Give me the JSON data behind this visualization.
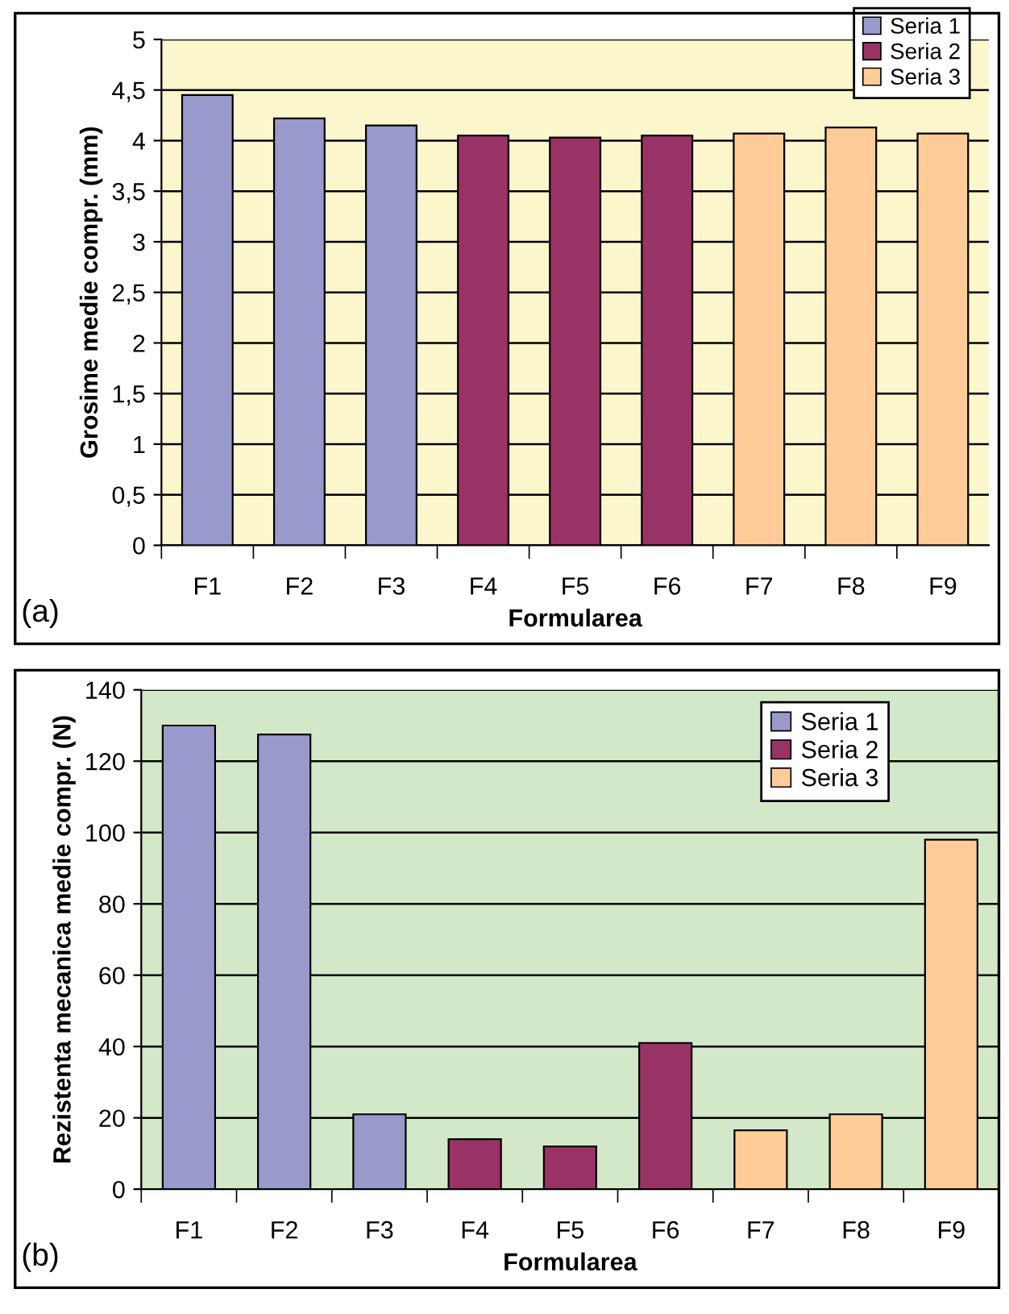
{
  "chart_data": [
    {
      "type": "bar",
      "stacked": true,
      "xlabel": "Formularea",
      "ylabel": "Grosime medie compr. (mm)",
      "annotations": [
        "(a)"
      ],
      "categories": [
        "F1",
        "F2",
        "F3",
        "F4",
        "F5",
        "F6",
        "F7",
        "F8",
        "F9"
      ],
      "series": [
        {
          "name": "Seria 1",
          "color": "#9999cc",
          "values": [
            4.45,
            4.22,
            4.15,
            null,
            null,
            null,
            null,
            null,
            null
          ]
        },
        {
          "name": "Seria 2",
          "color": "#993366",
          "values": [
            null,
            null,
            null,
            4.05,
            4.03,
            4.05,
            null,
            null,
            null
          ]
        },
        {
          "name": "Seria 3",
          "color": "#ffcc99",
          "values": [
            null,
            null,
            null,
            null,
            null,
            null,
            4.07,
            4.13,
            4.07
          ]
        }
      ],
      "ylim": [
        0,
        5
      ],
      "yticks": [
        0,
        {
          "value": 0.5,
          "label": "0,5"
        },
        1,
        {
          "value": 1.5,
          "label": "1,5"
        },
        2,
        {
          "value": 2.5,
          "label": "2,5"
        },
        3,
        {
          "value": 3.5,
          "label": "3,5"
        },
        4,
        {
          "value": 4.5,
          "label": "4,5"
        },
        5
      ],
      "grid": "y",
      "legend": "top right"
    },
    {
      "type": "bar",
      "stacked": true,
      "xlabel": "Formularea",
      "ylabel": "Rezistenta mecanica medie compr. (N)",
      "annotations": [
        "(b)"
      ],
      "categories": [
        "F1",
        "F2",
        "F3",
        "F4",
        "F5",
        "F6",
        "F7",
        "F8",
        "F9"
      ],
      "series": [
        {
          "name": "Seria 1",
          "color": "#9999cc",
          "values": [
            130,
            127.5,
            21,
            null,
            null,
            null,
            null,
            null,
            null
          ]
        },
        {
          "name": "Seria 2",
          "color": "#993366",
          "values": [
            null,
            null,
            null,
            14,
            12,
            41,
            null,
            null,
            null
          ]
        },
        {
          "name": "Seria 3",
          "color": "#ffcc99",
          "values": [
            null,
            null,
            null,
            null,
            null,
            null,
            16.5,
            21,
            98
          ]
        }
      ],
      "ylim": [
        0,
        140
      ],
      "yticks": [
        0,
        20,
        40,
        60,
        80,
        100,
        120,
        140
      ],
      "grid": "y",
      "legend": "top right"
    }
  ]
}
